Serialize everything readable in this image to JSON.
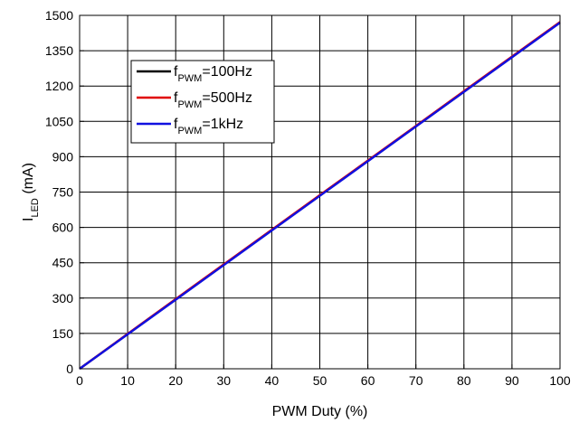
{
  "chart_data": {
    "type": "line",
    "xlabel": "PWM Duty (%)",
    "ylabel": {
      "main": "I",
      "sub": "LED",
      "unit": " (mA)"
    },
    "xlim": [
      0,
      100
    ],
    "ylim": [
      0,
      1500
    ],
    "x_ticks": [
      0,
      10,
      20,
      30,
      40,
      50,
      60,
      70,
      80,
      90,
      100
    ],
    "y_ticks": [
      0,
      150,
      300,
      450,
      600,
      750,
      900,
      1050,
      1200,
      1350,
      1500
    ],
    "x_tick_labels": [
      "0",
      "10",
      "20",
      "30",
      "40",
      "50",
      "60",
      "70",
      "80",
      "90",
      "100"
    ],
    "y_tick_labels": [
      "0",
      "150",
      "300",
      "450",
      "600",
      "750",
      "900",
      "1050",
      "1200",
      "1350",
      "1500"
    ],
    "grid": true,
    "legend_position": "top-left",
    "series": [
      {
        "name": "f_PWM=100Hz",
        "legend": {
          "main": "f",
          "sub": "PWM",
          "rest": "=100Hz"
        },
        "color": "#000000",
        "x": [
          0,
          10,
          20,
          30,
          40,
          50,
          60,
          70,
          80,
          90,
          100
        ],
        "y": [
          0,
          147,
          294,
          441,
          588,
          735,
          882,
          1029,
          1176,
          1323,
          1470
        ]
      },
      {
        "name": "f_PWM=500Hz",
        "legend": {
          "main": "f",
          "sub": "PWM",
          "rest": "=500Hz"
        },
        "color": "#e00000",
        "x": [
          0,
          10,
          20,
          30,
          40,
          50,
          60,
          70,
          80,
          90,
          100
        ],
        "y": [
          0,
          148,
          296,
          443,
          590,
          737,
          884,
          1031,
          1178,
          1325,
          1472
        ]
      },
      {
        "name": "f_PWM=1kHz",
        "legend": {
          "main": "f",
          "sub": "PWM",
          "rest": "=1kHz"
        },
        "color": "#1010e0",
        "x": [
          0,
          10,
          20,
          30,
          40,
          50,
          60,
          70,
          80,
          90,
          100
        ],
        "y": [
          0,
          146,
          293,
          440,
          587,
          734,
          881,
          1028,
          1175,
          1322,
          1469
        ]
      }
    ]
  }
}
